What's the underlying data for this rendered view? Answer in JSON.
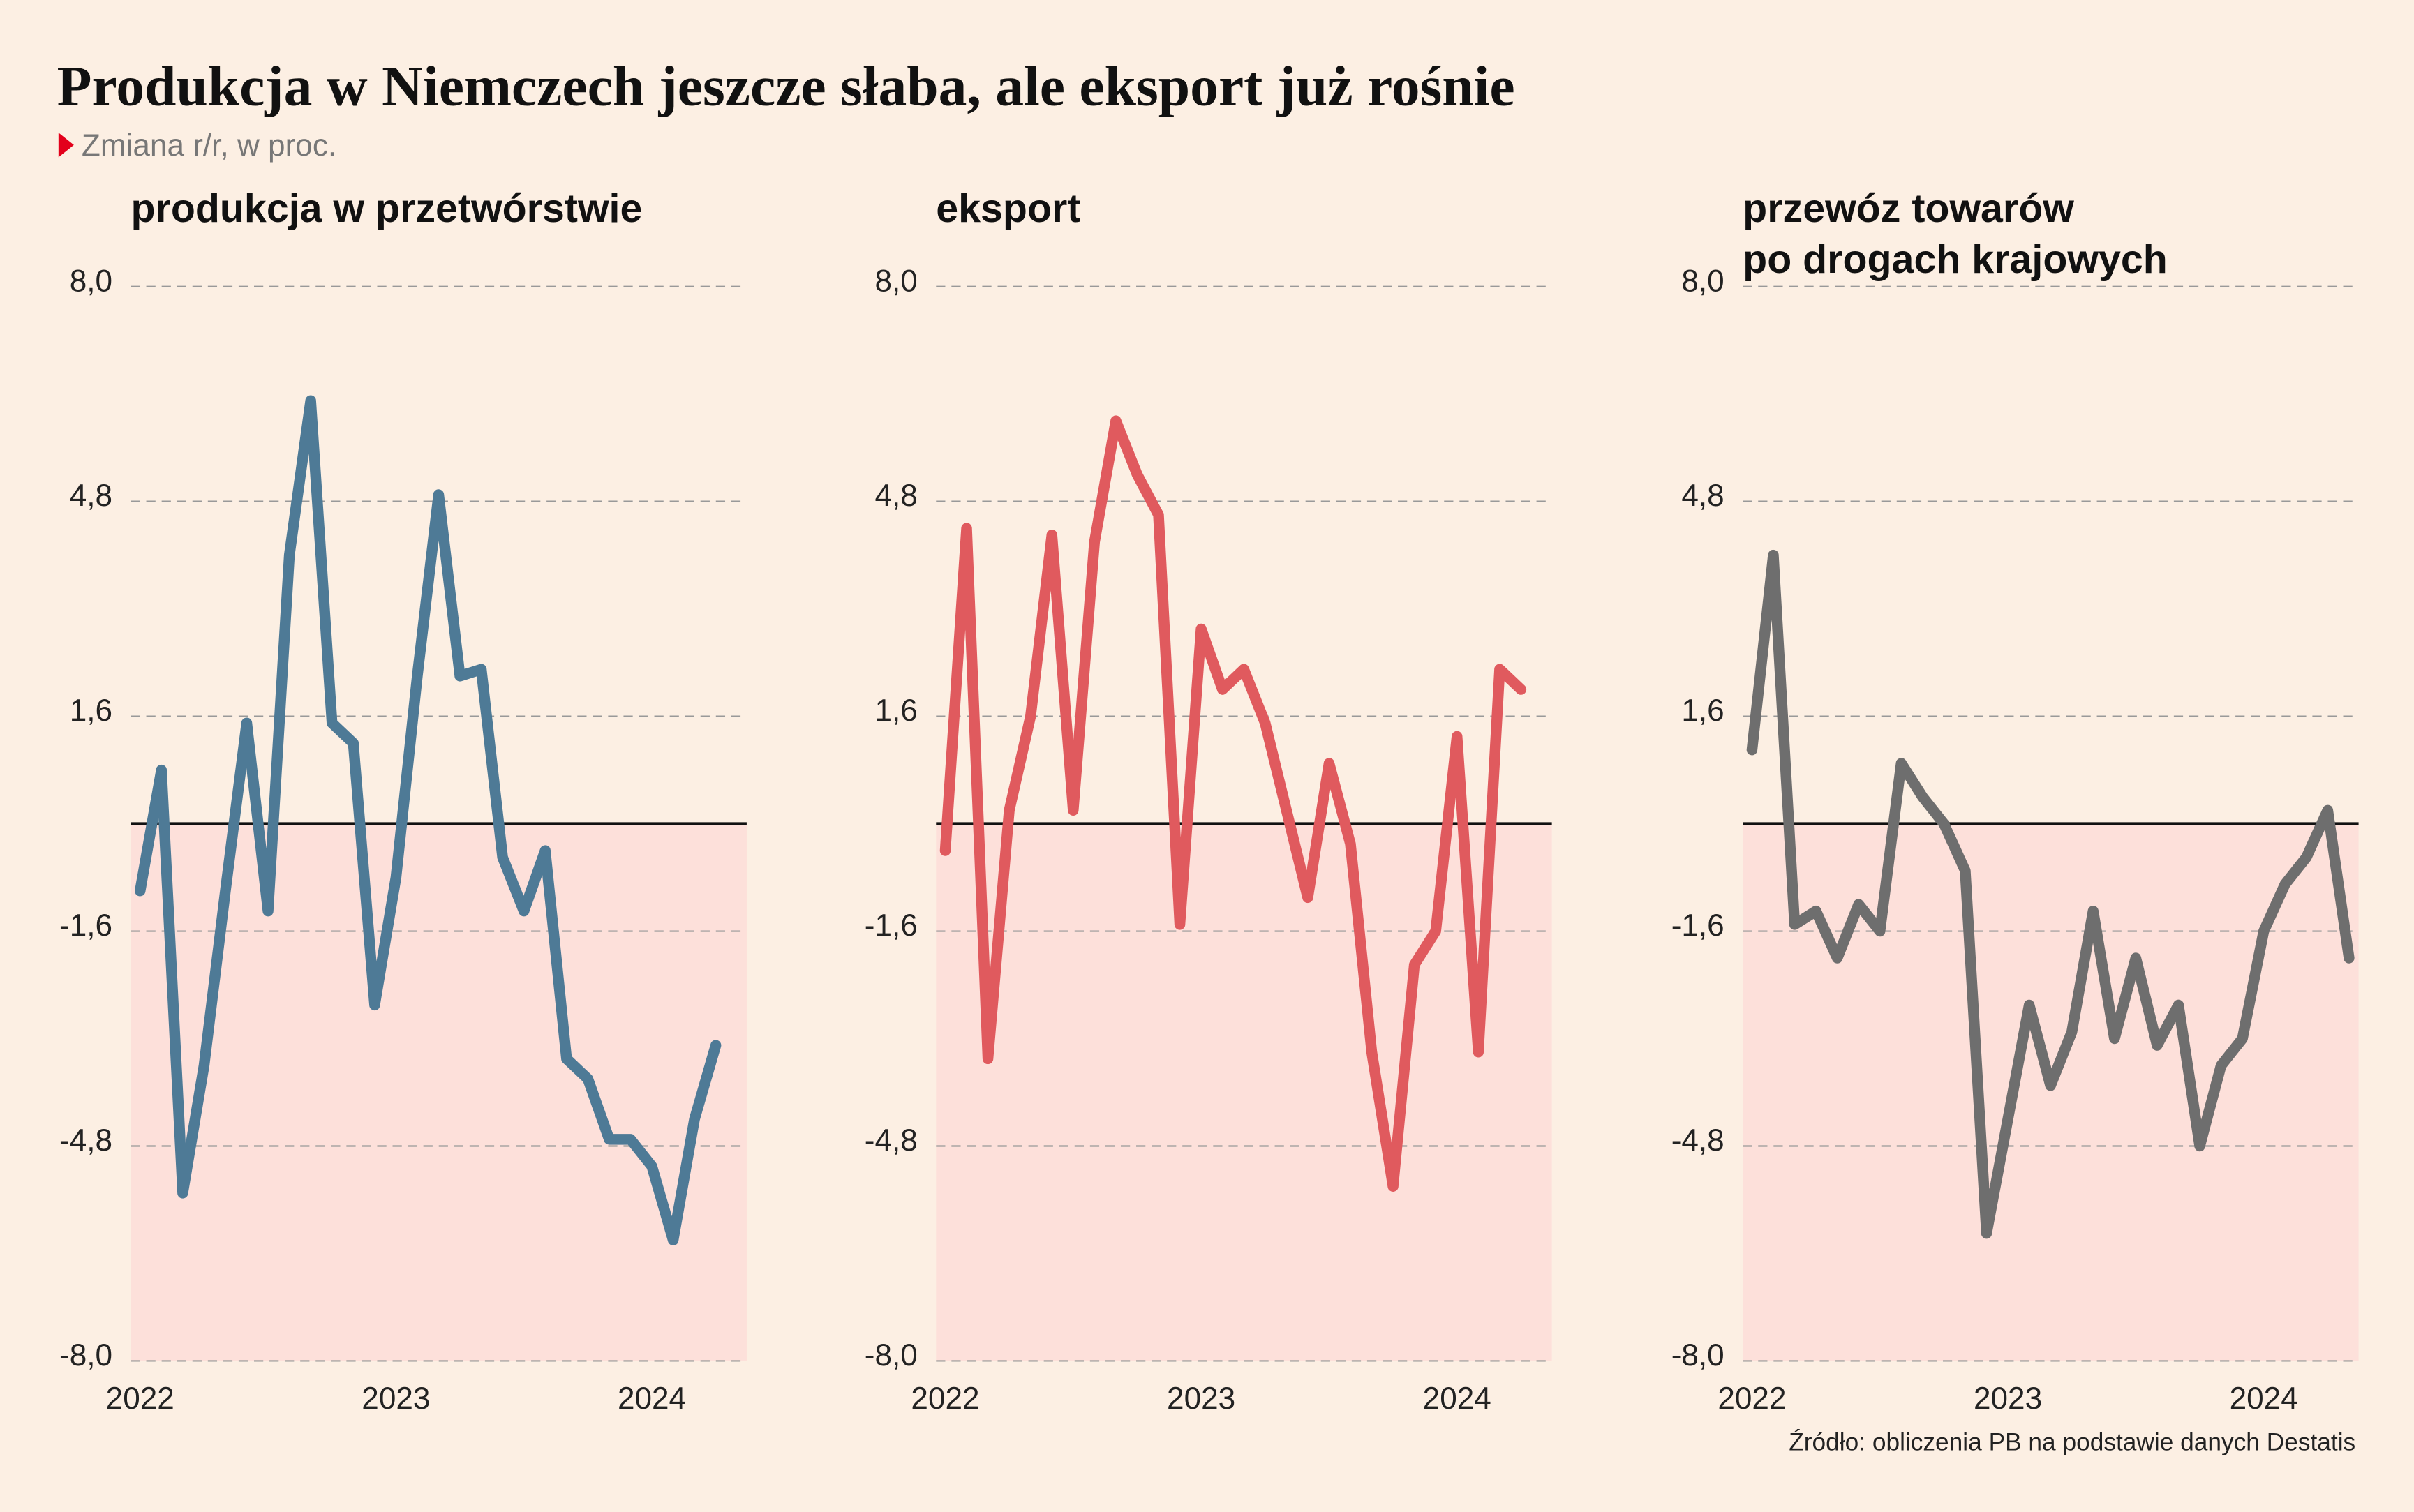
{
  "title": "Produkcja w Niemczech jeszcze słaba, ale eksport już rośnie",
  "subtitle": "Zmiana r/r, w proc.",
  "source": "Źródło: obliczenia PB na podstawie danych Destatis",
  "chart_data": [
    {
      "type": "line",
      "title": [
        "produkcja w przetwórstwie"
      ],
      "color": "#4e7a96",
      "categories": [
        "2022",
        null,
        null,
        null,
        null,
        null,
        null,
        null,
        null,
        null,
        null,
        null,
        "2023",
        null,
        null,
        null,
        null,
        null,
        null,
        null,
        null,
        null,
        null,
        null,
        "2024",
        null,
        null,
        null
      ],
      "values": [
        -1.0,
        0.8,
        -5.5,
        -3.6,
        -1.0,
        1.5,
        -1.3,
        4.0,
        6.3,
        1.5,
        1.2,
        -2.7,
        -0.8,
        2.2,
        4.9,
        2.2,
        2.3,
        -0.5,
        -1.3,
        -0.4,
        -3.5,
        -3.8,
        -4.7,
        -4.7,
        -5.1,
        -6.2,
        -4.4,
        -3.3
      ],
      "ylim": [
        -8,
        8
      ],
      "yticks": [
        {
          "value": 8,
          "label": "8,0"
        },
        {
          "value": 4.8,
          "label": "4,8"
        },
        {
          "value": 1.6,
          "label": "1,6"
        },
        {
          "value": -1.6,
          "label": "-1,6"
        },
        {
          "value": -4.8,
          "label": "-4,8"
        },
        {
          "value": -8,
          "label": "-8,0"
        }
      ],
      "grid": true
    },
    {
      "type": "line",
      "title": [
        "eksport"
      ],
      "color": "#e05a5e",
      "categories": [
        "2022",
        null,
        null,
        null,
        null,
        null,
        null,
        null,
        null,
        null,
        null,
        null,
        "2023",
        null,
        null,
        null,
        null,
        null,
        null,
        null,
        null,
        null,
        null,
        null,
        "2024",
        null,
        null,
        null
      ],
      "values": [
        -0.4,
        4.4,
        -3.5,
        0.2,
        1.6,
        4.3,
        0.2,
        4.2,
        6.0,
        5.2,
        4.6,
        -1.5,
        2.9,
        2.0,
        2.3,
        1.5,
        0.2,
        -1.1,
        0.9,
        -0.3,
        -3.4,
        -5.4,
        -2.1,
        -1.6,
        1.3,
        -3.4,
        2.3,
        2.0
      ],
      "ylim": [
        -8,
        8
      ],
      "yticks": [
        {
          "value": 8,
          "label": "8,0"
        },
        {
          "value": 4.8,
          "label": "4,8"
        },
        {
          "value": 1.6,
          "label": "1,6"
        },
        {
          "value": -1.6,
          "label": "-1,6"
        },
        {
          "value": -4.8,
          "label": "-4,8"
        },
        {
          "value": -8,
          "label": "-8,0"
        }
      ],
      "grid": true
    },
    {
      "type": "line",
      "title": [
        "przewóz towarów",
        "po drogach krajowych"
      ],
      "color": "#6e6e6e",
      "categories": [
        "2022",
        null,
        null,
        null,
        null,
        null,
        null,
        null,
        null,
        null,
        null,
        null,
        "2023",
        null,
        null,
        null,
        null,
        null,
        null,
        null,
        null,
        null,
        null,
        null,
        "2024",
        null,
        null,
        null,
        null
      ],
      "values": [
        1.1,
        4.0,
        -1.5,
        -1.3,
        -2.0,
        -1.2,
        -1.6,
        0.9,
        0.4,
        0.0,
        -0.7,
        -6.1,
        -4.4,
        -2.7,
        -3.9,
        -3.1,
        -1.3,
        -3.2,
        -2.0,
        -3.3,
        -2.7,
        -4.8,
        -3.6,
        -3.2,
        -1.6,
        -0.9,
        -0.5,
        0.2,
        -2.0
      ],
      "ylim": [
        -8,
        8
      ],
      "yticks": [
        {
          "value": 8,
          "label": "8,0"
        },
        {
          "value": 4.8,
          "label": "4,8"
        },
        {
          "value": 1.6,
          "label": "1,6"
        },
        {
          "value": -1.6,
          "label": "-1,6"
        },
        {
          "value": -4.8,
          "label": "-4,8"
        },
        {
          "value": -8,
          "label": "-8,0"
        }
      ],
      "grid": true
    }
  ]
}
